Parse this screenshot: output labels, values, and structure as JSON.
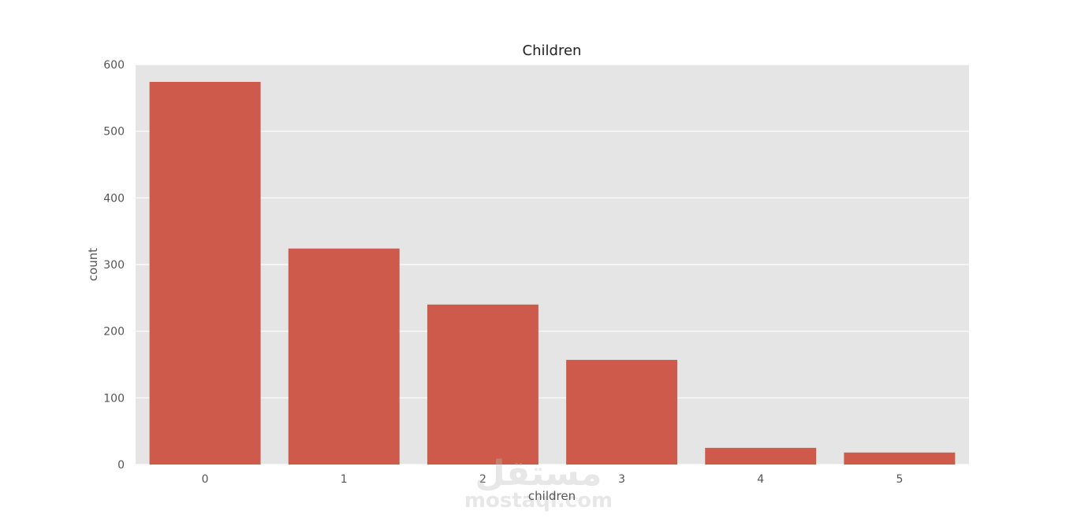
{
  "chart_data": {
    "type": "bar",
    "title": "Children",
    "xlabel": "children",
    "ylabel": "count",
    "categories": [
      "0",
      "1",
      "2",
      "3",
      "4",
      "5"
    ],
    "values": [
      574,
      324,
      240,
      157,
      25,
      18
    ],
    "ylim": [
      0,
      600
    ],
    "yticks": [
      0,
      100,
      200,
      300,
      400,
      500,
      600
    ],
    "grid": true,
    "bar_color": "#cd5a4a",
    "background_color": "#e5e5e5"
  },
  "watermark": {
    "text_top": "مستقل",
    "text_bottom": "mostaql.com"
  }
}
